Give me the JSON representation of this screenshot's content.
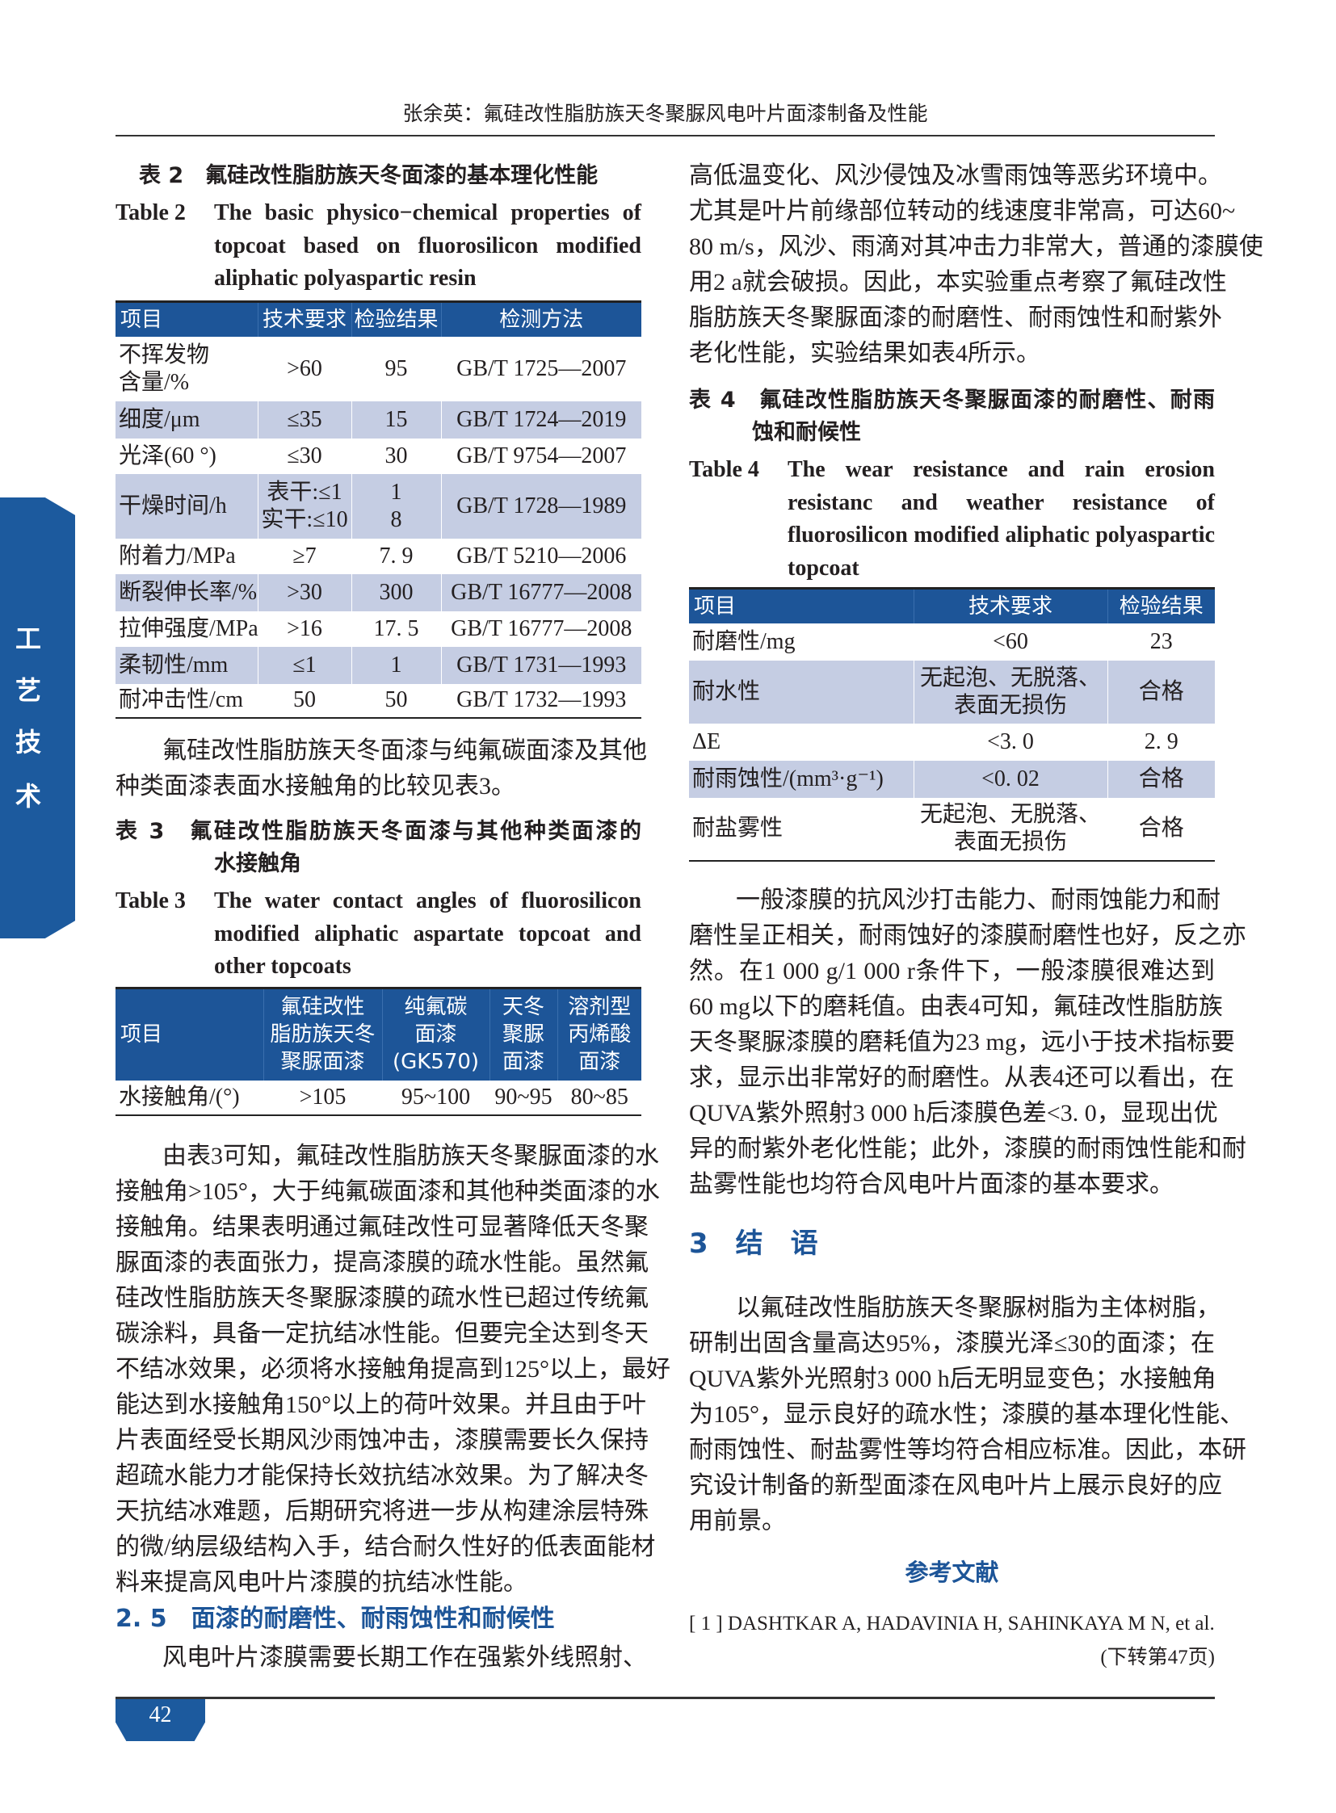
{
  "header": {
    "running_title": "张余英：氟硅改性脂肪族天冬聚脲风电叶片面漆制备及性能"
  },
  "side_tab": {
    "chars": [
      "工",
      "艺",
      "技",
      "术"
    ]
  },
  "table2": {
    "caption_cn": "表 2　氟硅改性脂肪族天冬面漆的基本理化性能",
    "caption_en_label": "Table 2",
    "caption_en_lines": [
      "The basic physico−chemical properties of",
      "topcoat based on fluorosilicon modified",
      "aliphatic polyaspartic resin"
    ],
    "headers": [
      "项目",
      "技术要求",
      "检验结果",
      "检测方法"
    ],
    "rows": [
      [
        "不挥发物\n含量/%",
        ">60",
        "95",
        "GB/T 1725—2007"
      ],
      [
        "细度/μm",
        "≤35",
        "15",
        "GB/T 1724—2019"
      ],
      [
        "光泽(60 °)",
        "≤30",
        "30",
        "GB/T 9754—2007"
      ],
      [
        "干燥时间/h",
        "表干:≤1\n实干:≤10",
        "1\n8",
        "GB/T 1728—1989"
      ],
      [
        "附着力/MPa",
        "≥7",
        "7. 9",
        "GB/T 5210—2006"
      ],
      [
        "断裂伸长率/%",
        ">30",
        "300",
        "GB/T 16777—2008"
      ],
      [
        "拉伸强度/MPa",
        ">16",
        "17. 5",
        "GB/T 16777—2008"
      ],
      [
        "柔韧性/mm",
        "≤1",
        "1",
        "GB/T 1731—1993"
      ],
      [
        "耐冲击性/cm",
        "50",
        "50",
        "GB/T 1732—1993"
      ]
    ]
  },
  "para_a": {
    "lines": [
      "氟硅改性脂肪族天冬面漆与纯氟碳面漆及其他",
      "种类面漆表面水接触角的比较见表3。"
    ]
  },
  "table3": {
    "caption_cn_lines": [
      "表 3　氟硅改性脂肪族天冬面漆与其他种类面漆的",
      "水接触角"
    ],
    "caption_en_label": "Table 3",
    "caption_en_lines": [
      "The water contact angles of fluorosilicon",
      "modified aliphatic aspartate topcoat and",
      "other topcoats"
    ],
    "headers": [
      "项目",
      "氟硅改性\n脂肪族天冬\n聚脲面漆",
      "纯氟碳\n面漆\n(GK570)",
      "天冬\n聚脲\n面漆",
      "溶剂型\n丙烯酸\n面漆"
    ],
    "rows": [
      [
        "水接触角/(°)",
        ">105",
        "95~100",
        "90~95",
        "80~85"
      ]
    ]
  },
  "para_b": {
    "lines": [
      "由表3可知，氟硅改性脂肪族天冬聚脲面漆的水",
      "接触角>105°，大于纯氟碳面漆和其他种类面漆的水",
      "接触角。结果表明通过氟硅改性可显著降低天冬聚",
      "脲面漆的表面张力，提高漆膜的疏水性能。虽然氟",
      "硅改性脂肪族天冬聚脲漆膜的疏水性已超过传统氟",
      "碳涂料，具备一定抗结冰性能。但要完全达到冬天",
      "不结冰效果，必须将水接触角提高到125°以上，最好",
      "能达到水接触角150°以上的荷叶效果。并且由于叶",
      "片表面经受长期风沙雨蚀冲击，漆膜需要长久保持",
      "超疏水能力才能保持长效抗结冰效果。为了解决冬",
      "天抗结冰难题，后期研究将进一步从构建涂层特殊",
      "的微/纳层级结构入手，结合耐久性好的低表面能材",
      "料来提高风电叶片漆膜的抗结冰性能。"
    ]
  },
  "section_2_5": {
    "heading": "2. 5　面漆的耐磨性、耐雨蚀性和耐候性",
    "lines": [
      "风电叶片漆膜需要长期工作在强紫外线照射、"
    ]
  },
  "para_c": {
    "lines": [
      "高低温变化、风沙侵蚀及冰雪雨蚀等恶劣环境中。",
      "尤其是叶片前缘部位转动的线速度非常高，可达60~",
      "80 m/s，风沙、雨滴对其冲击力非常大，普通的漆膜使",
      "用2 a就会破损。因此，本实验重点考察了氟硅改性",
      "脂肪族天冬聚脲面漆的耐磨性、耐雨蚀性和耐紫外",
      "老化性能，实验结果如表4所示。"
    ]
  },
  "table4": {
    "caption_cn_lines": [
      "表 4　氟硅改性脂肪族天冬聚脲面漆的耐磨性、耐雨",
      "蚀和耐候性"
    ],
    "caption_en_label": "Table 4",
    "caption_en_lines": [
      "The wear resistance and rain erosion",
      "resistanc and weather resistance of",
      "fluorosilicon modified aliphatic polyaspartic",
      "topcoat"
    ],
    "headers": [
      "项目",
      "技术要求",
      "检验结果"
    ],
    "rows": [
      [
        "耐磨性/mg",
        "<60",
        "23"
      ],
      [
        "耐水性",
        "无起泡、无脱落、\n表面无损伤",
        "合格"
      ],
      [
        "ΔE",
        "<3. 0",
        "2. 9"
      ],
      [
        "耐雨蚀性/(mm³·g⁻¹)",
        "<0. 02",
        "合格"
      ],
      [
        "耐盐雾性",
        "无起泡、无脱落、\n表面无损伤",
        "合格"
      ]
    ]
  },
  "para_d": {
    "lines": [
      "一般漆膜的抗风沙打击能力、耐雨蚀能力和耐",
      "磨性呈正相关，耐雨蚀好的漆膜耐磨性也好，反之亦",
      "然。在1 000 g/1 000 r条件下，一般漆膜很难达到",
      "60 mg以下的磨耗值。由表4可知，氟硅改性脂肪族",
      "天冬聚脲漆膜的磨耗值为23 mg，远小于技术指标要",
      "求，显示出非常好的耐磨性。从表4还可以看出，在",
      "QUVA紫外照射3 000 h后漆膜色差<3. 0，显现出优",
      "异的耐紫外老化性能；此外，漆膜的耐雨蚀性能和耐",
      "盐雾性能也均符合风电叶片面漆的基本要求。"
    ]
  },
  "section_3": {
    "heading": "3　结　语",
    "lines": [
      "以氟硅改性脂肪族天冬聚脲树脂为主体树脂，",
      "研制出固含量高达95%，漆膜光泽≤30的面漆；在",
      "QUVA紫外光照射3 000 h后无明显变色；水接触角",
      "为105°，显示良好的疏水性；漆膜的基本理化性能、",
      "耐雨蚀性、耐盐雾性等均符合相应标准。因此，本研",
      "究设计制备的新型面漆在风电叶片上展示良好的应",
      "用前景。"
    ]
  },
  "references": {
    "heading": "参考文献",
    "items": [
      "[ 1 ]  DASHTKAR A, HADAVINIA H, SAHINKAYA M N, et al."
    ],
    "continued": "(下转第47页)"
  },
  "footer": {
    "page_number": "42"
  },
  "colors": {
    "accent_blue": "#1d5598",
    "row_shade": "#c5cde3"
  }
}
